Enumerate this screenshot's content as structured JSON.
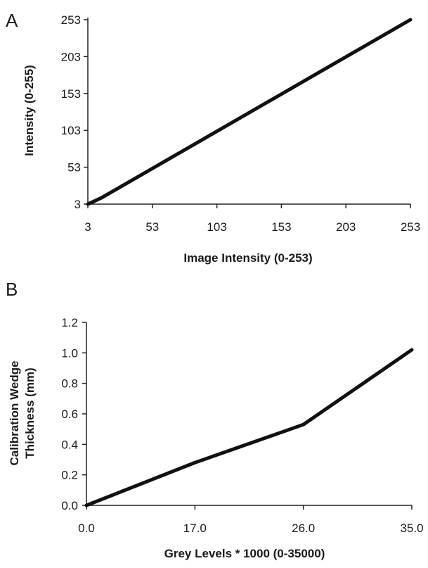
{
  "chart_data": [
    {
      "panel_label": "A",
      "type": "line",
      "xlabel": "Image Intensity (0-253)",
      "ylabel": "Intensity (0-255)",
      "xlim": [
        3,
        253
      ],
      "ylim": [
        3,
        253
      ],
      "x_ticks": [
        "3",
        "53",
        "103",
        "153",
        "203",
        "253"
      ],
      "y_ticks": [
        "3",
        "53",
        "103",
        "153",
        "203",
        "253"
      ],
      "grid": false,
      "series": [
        {
          "x": [
            3,
            8,
            14,
            253
          ],
          "y": [
            3,
            7,
            12,
            253
          ]
        }
      ]
    },
    {
      "panel_label": "B",
      "type": "line",
      "xlabel": "Grey Levels * 1000 (0-35000)",
      "ylabel": "Calibration Wedge Thickness (mm)",
      "ylabel_lines": [
        "Calibration Wedge",
        "Thickness (mm)"
      ],
      "xlim": [
        0,
        35
      ],
      "ylim": [
        0,
        1.2
      ],
      "x_ticks": [
        "0.0",
        "17.0",
        "26.0",
        "35.0"
      ],
      "y_ticks": [
        "0.0",
        "0.2",
        "0.4",
        "0.6",
        "0.8",
        "1.0",
        "1.2"
      ],
      "x_categorical": true,
      "grid": false,
      "series": [
        {
          "x": [
            "0.0",
            "17.0",
            "26.0",
            "35.0"
          ],
          "y": [
            0.0,
            0.28,
            0.53,
            1.02
          ]
        }
      ]
    }
  ]
}
